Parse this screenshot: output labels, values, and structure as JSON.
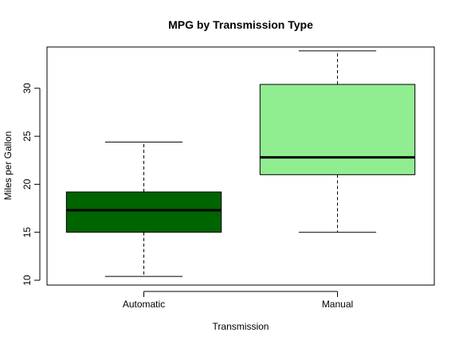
{
  "chart_data": {
    "type": "box",
    "title": "MPG by Transmission Type",
    "xlabel": "Transmission",
    "ylabel": "Miles per Gallon",
    "ylim": [
      9.5,
      34.3
    ],
    "yticks": [
      10,
      15,
      20,
      25,
      30
    ],
    "categories": [
      "Automatic",
      "Manual"
    ],
    "boxes": [
      {
        "category": "Automatic",
        "min": 10.4,
        "q1": 15.0,
        "median": 17.3,
        "q3": 19.2,
        "max": 24.4,
        "fill": "#006400"
      },
      {
        "category": "Manual",
        "min": 15.0,
        "q1": 21.0,
        "median": 22.8,
        "q3": 30.4,
        "max": 33.9,
        "fill": "#90ee90"
      }
    ],
    "grid": false,
    "legend": "none"
  }
}
